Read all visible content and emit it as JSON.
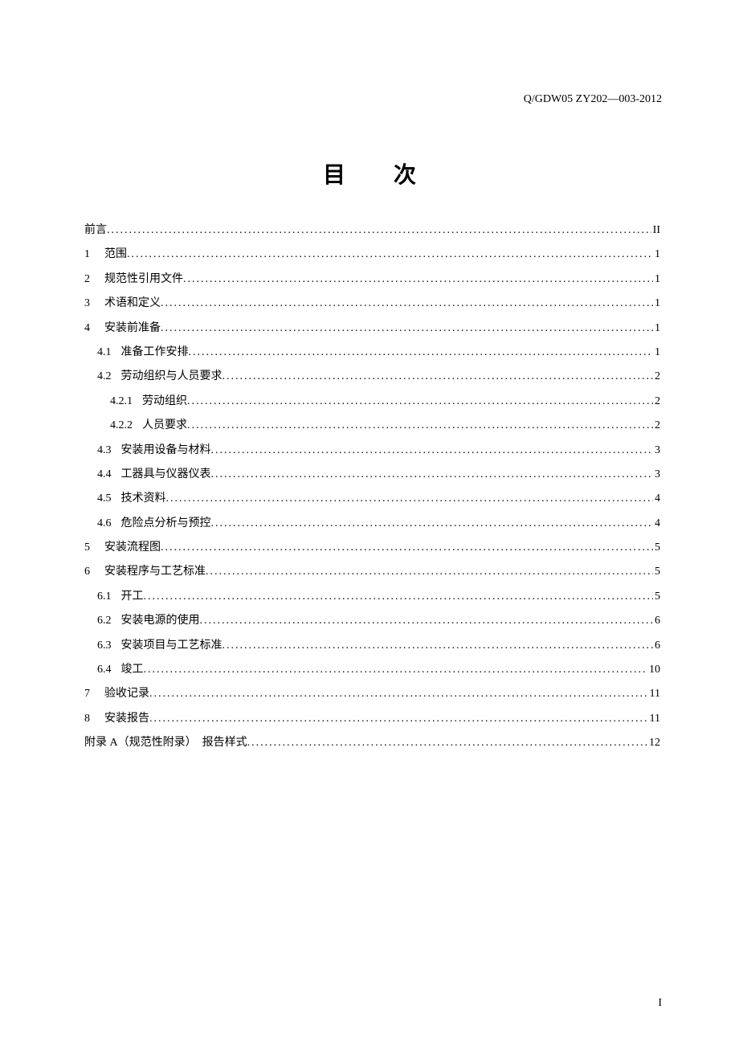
{
  "header_code": "Q/GDW05 ZY202—003-2012",
  "title": "目次",
  "page_number": "I",
  "entries": [
    {
      "level": 1,
      "num": "",
      "text": "前言",
      "page": "II",
      "gap": false
    },
    {
      "level": 1,
      "num": "1",
      "text": "范围",
      "page": "1",
      "gap": true
    },
    {
      "level": 1,
      "num": "2",
      "text": "规范性引用文件",
      "page": "1",
      "gap": true
    },
    {
      "level": 1,
      "num": "3",
      "text": "术语和定义",
      "page": "1",
      "gap": true
    },
    {
      "level": 1,
      "num": "4",
      "text": "安装前准备",
      "page": "1",
      "gap": true
    },
    {
      "level": 2,
      "num": "4.1",
      "text": "准备工作安排",
      "page": "1",
      "gap": true
    },
    {
      "level": 2,
      "num": "4.2",
      "text": "劳动组织与人员要求",
      "page": "2",
      "gap": false
    },
    {
      "level": 3,
      "num": "4.2.1",
      "text": "劳动组织",
      "page": "2",
      "gap": false
    },
    {
      "level": 3,
      "num": "4.2.2",
      "text": "人员要求",
      "page": "2",
      "gap": false
    },
    {
      "level": 2,
      "num": "4.3",
      "text": "安装用设备与材料",
      "page": "3",
      "gap": false
    },
    {
      "level": 2,
      "num": "4.4",
      "text": "工器具与仪器仪表",
      "page": "3",
      "gap": false
    },
    {
      "level": 2,
      "num": "4.5",
      "text": "技术资料",
      "page": "4",
      "gap": false
    },
    {
      "level": 2,
      "num": "4.6",
      "text": "危险点分析与预控",
      "page": "4",
      "gap": false
    },
    {
      "level": 1,
      "num": "5",
      "text": "安装流程图",
      "page": "5",
      "gap": true
    },
    {
      "level": 1,
      "num": "6",
      "text": "安装程序与工艺标准",
      "page": "5",
      "gap": true
    },
    {
      "level": 2,
      "num": "6.1",
      "text": "开工",
      "page": "5",
      "gap": true
    },
    {
      "level": 2,
      "num": "6.2",
      "text": "安装电源的使用",
      "page": "6",
      "gap": false
    },
    {
      "level": 2,
      "num": "6.3",
      "text": "安装项目与工艺标准",
      "page": "6",
      "gap": false
    },
    {
      "level": 2,
      "num": "6.4",
      "text": "竣工",
      "page": "10",
      "gap": false
    },
    {
      "level": 1,
      "num": "7",
      "text": "验收记录",
      "page": "11",
      "gap": true
    },
    {
      "level": 1,
      "num": "8",
      "text": "安装报告",
      "page": "11",
      "gap": true
    },
    {
      "level": 1,
      "num": "",
      "text": "附录 A（规范性附录）　报告样式",
      "page": "12",
      "gap": true
    }
  ]
}
